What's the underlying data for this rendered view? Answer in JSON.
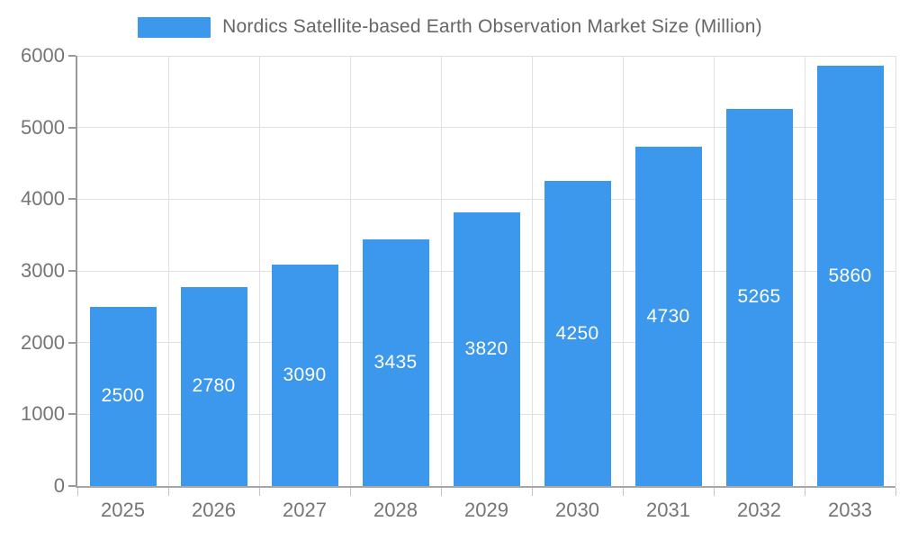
{
  "colors": {
    "bar": "#3B98EC",
    "grid": "#e0e0e0",
    "axis_line": "#999999",
    "axis_text": "#757575",
    "legend_text": "#666666",
    "bar_value_text": "#ffffff"
  },
  "legend": {
    "items": [
      {
        "label": "Nordics Satellite-based Earth Observation Market Size (Million)",
        "color": "#3B98EC"
      }
    ]
  },
  "chart_data": {
    "type": "bar",
    "title": "Nordics Satellite-based Earth Observation Market Size (Million)",
    "categories": [
      "2025",
      "2026",
      "2027",
      "2028",
      "2029",
      "2030",
      "2031",
      "2032",
      "2033"
    ],
    "values": [
      2500,
      2780,
      3090,
      3435,
      3820,
      4250,
      4730,
      5265,
      5860
    ],
    "value_labels": [
      "2500",
      "2780",
      "3090",
      "3435",
      "3820",
      "4250",
      "4730",
      "5265",
      "5860"
    ],
    "series_name": "Nordics Satellite-based Earth Observation Market Size (Million)",
    "xlabel": "",
    "ylabel": "",
    "ylim": [
      0,
      6000
    ],
    "ytick_interval": 1000,
    "ytick_labels": [
      "0",
      "1000",
      "2000",
      "3000",
      "4000",
      "5000",
      "6000"
    ],
    "grid": true,
    "legend_position": "top",
    "value_label_position": "inside-center"
  }
}
